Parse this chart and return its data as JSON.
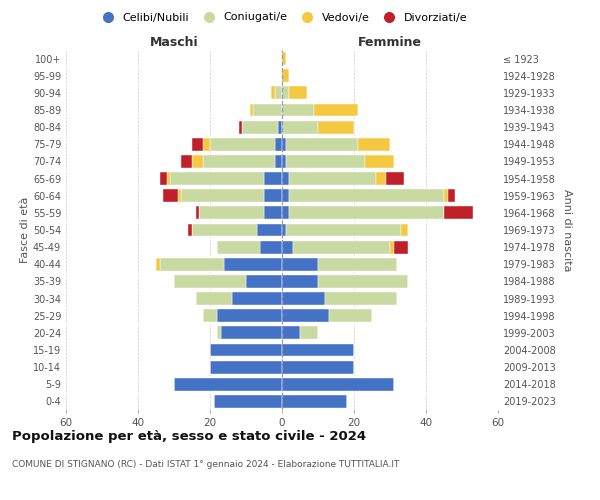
{
  "age_groups": [
    "0-4",
    "5-9",
    "10-14",
    "15-19",
    "20-24",
    "25-29",
    "30-34",
    "35-39",
    "40-44",
    "45-49",
    "50-54",
    "55-59",
    "60-64",
    "65-69",
    "70-74",
    "75-79",
    "80-84",
    "85-89",
    "90-94",
    "95-99",
    "100+"
  ],
  "birth_years": [
    "2019-2023",
    "2014-2018",
    "2009-2013",
    "2004-2008",
    "1999-2003",
    "1994-1998",
    "1989-1993",
    "1984-1988",
    "1979-1983",
    "1974-1978",
    "1969-1973",
    "1964-1968",
    "1959-1963",
    "1954-1958",
    "1949-1953",
    "1944-1948",
    "1939-1943",
    "1934-1938",
    "1929-1933",
    "1924-1928",
    "≤ 1923"
  ],
  "colors": {
    "celibe": "#4472c4",
    "coniugato": "#c8daa2",
    "vedovo": "#f5c842",
    "divorziato": "#c0202a"
  },
  "maschi": {
    "celibe": [
      19,
      30,
      20,
      20,
      17,
      18,
      14,
      10,
      16,
      6,
      7,
      5,
      5,
      5,
      2,
      2,
      1,
      0,
      0,
      0,
      0
    ],
    "coniugato": [
      0,
      0,
      0,
      0,
      1,
      4,
      10,
      20,
      18,
      12,
      18,
      18,
      23,
      26,
      20,
      18,
      10,
      8,
      2,
      0,
      0
    ],
    "vedovo": [
      0,
      0,
      0,
      0,
      0,
      0,
      0,
      0,
      1,
      0,
      0,
      0,
      1,
      1,
      3,
      2,
      0,
      1,
      1,
      0,
      0
    ],
    "divorziato": [
      0,
      0,
      0,
      0,
      0,
      0,
      0,
      0,
      0,
      0,
      1,
      1,
      4,
      2,
      3,
      3,
      1,
      0,
      0,
      0,
      0
    ]
  },
  "femmine": {
    "nubile": [
      18,
      31,
      20,
      20,
      5,
      13,
      12,
      10,
      10,
      3,
      1,
      2,
      2,
      2,
      1,
      1,
      0,
      0,
      0,
      0,
      0
    ],
    "coniugata": [
      0,
      0,
      0,
      0,
      5,
      12,
      20,
      25,
      22,
      27,
      32,
      43,
      43,
      24,
      22,
      20,
      10,
      9,
      2,
      0,
      0
    ],
    "vedova": [
      0,
      0,
      0,
      0,
      0,
      0,
      0,
      0,
      0,
      1,
      2,
      0,
      1,
      3,
      8,
      9,
      10,
      12,
      5,
      2,
      1
    ],
    "divorziata": [
      0,
      0,
      0,
      0,
      0,
      0,
      0,
      0,
      0,
      4,
      0,
      8,
      2,
      5,
      0,
      0,
      0,
      0,
      0,
      0,
      0
    ]
  },
  "title": "Popolazione per età, sesso e stato civile - 2024",
  "subtitle": "COMUNE DI STIGNANO (RC) - Dati ISTAT 1° gennaio 2024 - Elaborazione TUTTITALIA.IT",
  "ylabel_left": "Fasce di età",
  "ylabel_right": "Anni di nascita",
  "xlabel_left": "Maschi",
  "xlabel_right": "Femmine",
  "legend_labels": [
    "Celibi/Nubili",
    "Coniugati/e",
    "Vedovi/e",
    "Divorziati/e"
  ],
  "xlim": 60,
  "bar_height": 0.75,
  "background_color": "#ffffff",
  "grid_color": "#cccccc"
}
